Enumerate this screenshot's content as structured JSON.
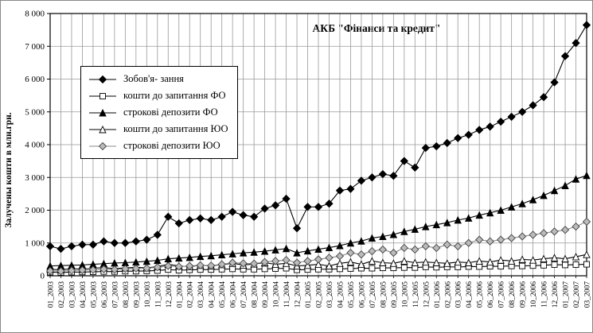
{
  "chart_data": {
    "type": "line",
    "title": "АКБ \"Фінанси та кредит\"",
    "ylabel": "Залучены кошти в млн.грн.",
    "xlabel": "",
    "ylim": [
      0,
      8000
    ],
    "ytick_step": 1000,
    "ytick_labels": [
      "0",
      "1 000",
      "2 000",
      "3 000",
      "4 000",
      "5 000",
      "6 000",
      "7 000",
      "8 000"
    ],
    "grid": true,
    "legend_position": "upper-left-inside",
    "gridline_color": "#999999",
    "axis_color": "#000000",
    "categories": [
      "01_2003",
      "02_2003",
      "03_2003",
      "04_2003",
      "05_2003",
      "06_2003",
      "07_2003",
      "08_2003",
      "09_2003",
      "10_2003",
      "11_2003",
      "12_2003",
      "01_2004",
      "02_2004",
      "03_2004",
      "04_2004",
      "05_2004",
      "06_2004",
      "07_2004",
      "08_2004",
      "09_2004",
      "10_2004",
      "11_2004",
      "12_2004",
      "01_2005",
      "02_2005",
      "03_2005",
      "04_2005",
      "05_2005",
      "06_2005",
      "07_2005",
      "08_2005",
      "09_2005",
      "10_2005",
      "11_2005",
      "12_2005",
      "01_2006",
      "02_2006",
      "03_2006",
      "04_2006",
      "05_2006",
      "06_2006",
      "07_2006",
      "08_2006",
      "09_2006",
      "10_2006",
      "11_2006",
      "12_2006",
      "01_2007",
      "02_2007",
      "03_2007"
    ],
    "series": [
      {
        "name": "Зобов'я- зання",
        "marker": "diamond",
        "fill": "#000000",
        "stroke": "#000000",
        "line": "#000000",
        "size": 4.5,
        "values": [
          900,
          820,
          900,
          950,
          950,
          1050,
          1000,
          1000,
          1050,
          1100,
          1250,
          1800,
          1600,
          1700,
          1750,
          1700,
          1800,
          1950,
          1850,
          1800,
          2050,
          2150,
          2350,
          1450,
          2100,
          2100,
          2200,
          2600,
          2650,
          2900,
          3000,
          3100,
          3050,
          3500,
          3300,
          3900,
          3950,
          4050,
          4200,
          4300,
          4450,
          4550,
          4700,
          4850,
          5000,
          5200,
          5450,
          5900,
          6700,
          7100,
          7650
        ]
      },
      {
        "name": "кошти до запитання ФО",
        "marker": "square",
        "fill": "#ffffff",
        "stroke": "#000000",
        "line": "#000000",
        "size": 3.5,
        "values": [
          110,
          100,
          110,
          115,
          120,
          130,
          130,
          140,
          140,
          150,
          160,
          190,
          170,
          180,
          190,
          190,
          200,
          210,
          200,
          200,
          210,
          220,
          230,
          180,
          190,
          200,
          200,
          210,
          220,
          230,
          230,
          240,
          240,
          250,
          250,
          270,
          260,
          270,
          270,
          280,
          280,
          290,
          290,
          300,
          300,
          310,
          320,
          340,
          330,
          340,
          350
        ]
      },
      {
        "name": "строкові депозити ФО",
        "marker": "triangle",
        "fill": "#000000",
        "stroke": "#000000",
        "line": "#000000",
        "size": 4,
        "values": [
          300,
          310,
          320,
          330,
          350,
          370,
          390,
          400,
          420,
          440,
          470,
          520,
          540,
          560,
          590,
          610,
          640,
          670,
          700,
          720,
          750,
          790,
          830,
          700,
          760,
          810,
          860,
          920,
          1000,
          1060,
          1150,
          1200,
          1260,
          1350,
          1420,
          1500,
          1560,
          1620,
          1700,
          1760,
          1850,
          1920,
          2000,
          2100,
          2200,
          2320,
          2450,
          2600,
          2750,
          2950,
          3060
        ]
      },
      {
        "name": "кошти до запитання ЮО",
        "marker": "triangle",
        "fill": "#ffffff",
        "stroke": "#000000",
        "line": "#000000",
        "size": 4,
        "values": [
          200,
          180,
          220,
          200,
          230,
          250,
          220,
          240,
          260,
          240,
          280,
          350,
          300,
          280,
          320,
          300,
          340,
          380,
          330,
          360,
          400,
          350,
          380,
          300,
          320,
          350,
          300,
          380,
          420,
          350,
          450,
          400,
          380,
          450,
          400,
          420,
          400,
          380,
          420,
          400,
          450,
          420,
          480,
          450,
          500,
          480,
          520,
          550,
          520,
          580,
          650
        ]
      },
      {
        "name": "строкові депозити ЮО",
        "marker": "diamond",
        "fill": "#bbbbbb",
        "stroke": "#444444",
        "line": "#888888",
        "size": 4.5,
        "values": [
          150,
          140,
          160,
          170,
          180,
          200,
          190,
          210,
          220,
          230,
          260,
          300,
          280,
          300,
          320,
          310,
          350,
          400,
          380,
          370,
          420,
          450,
          480,
          400,
          450,
          500,
          550,
          600,
          700,
          650,
          750,
          800,
          700,
          850,
          800,
          900,
          850,
          950,
          900,
          1000,
          1100,
          1050,
          1100,
          1150,
          1200,
          1250,
          1300,
          1350,
          1400,
          1500,
          1650
        ]
      }
    ]
  }
}
